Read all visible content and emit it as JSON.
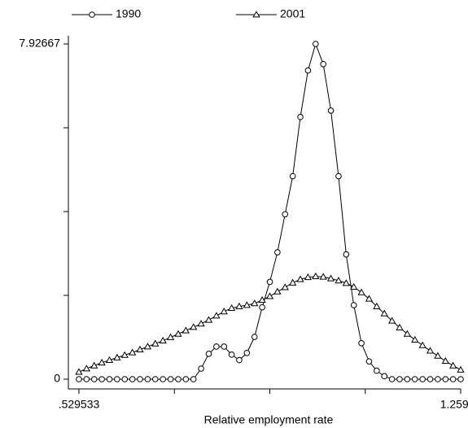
{
  "chart_data": {
    "type": "line",
    "xlabel": "Relative employment rate",
    "x": [
      0.5295,
      0.5441,
      0.5587,
      0.5733,
      0.5879,
      0.6025,
      0.6171,
      0.6317,
      0.6463,
      0.6609,
      0.6755,
      0.6901,
      0.7047,
      0.7193,
      0.7339,
      0.7485,
      0.7631,
      0.7777,
      0.7923,
      0.8069,
      0.8215,
      0.836,
      0.8506,
      0.8652,
      0.8798,
      0.8944,
      0.909,
      0.9236,
      0.9382,
      0.9528,
      0.9674,
      0.982,
      0.9966,
      1.0112,
      1.0258,
      1.0404,
      1.055,
      1.0696,
      1.0842,
      1.0988,
      1.1134,
      1.128,
      1.1426,
      1.1572,
      1.1718,
      1.1864,
      1.201,
      1.2156,
      1.2302,
      1.2448,
      1.2593
    ],
    "series": [
      {
        "name": "1990",
        "color": "#000000",
        "marker": "circle",
        "values": [
          0,
          0,
          0,
          0,
          0,
          0,
          0,
          0,
          0,
          0,
          0,
          0,
          0,
          0,
          0,
          0,
          0.25,
          0.6,
          0.77,
          0.77,
          0.58,
          0.45,
          0.62,
          1.0,
          1.7,
          2.3,
          3.0,
          3.9,
          4.8,
          6.2,
          7.3,
          7.92667,
          7.45,
          6.35,
          4.8,
          2.95,
          1.75,
          0.85,
          0.42,
          0.2,
          0.07,
          0,
          0,
          0,
          0,
          0,
          0,
          0,
          0,
          0,
          0
        ]
      },
      {
        "name": "2001",
        "color": "#000000",
        "marker": "triangle",
        "values": [
          0.17,
          0.25,
          0.32,
          0.39,
          0.45,
          0.51,
          0.57,
          0.63,
          0.7,
          0.77,
          0.84,
          0.91,
          0.99,
          1.07,
          1.15,
          1.23,
          1.31,
          1.4,
          1.5,
          1.6,
          1.68,
          1.72,
          1.75,
          1.79,
          1.87,
          1.96,
          2.07,
          2.17,
          2.28,
          2.36,
          2.41,
          2.43,
          2.42,
          2.38,
          2.33,
          2.27,
          2.18,
          2.05,
          1.9,
          1.72,
          1.55,
          1.38,
          1.22,
          1.07,
          0.93,
          0.8,
          0.67,
          0.55,
          0.43,
          0.32,
          0.22
        ]
      }
    ],
    "xlim": [
      0.529533,
      1.25929
    ],
    "xticks": [
      {
        "value": 0.529533,
        "label": ".529533"
      },
      1.25929
    ],
    "xticks_minor": [
      0.71197,
      0.89441,
      1.07685
    ],
    "ylim": [
      0,
      7.92667
    ],
    "yticks": [
      0,
      7.92667
    ],
    "yticks_minor": [
      1.98167,
      3.96333,
      5.945
    ],
    "legend": "top"
  }
}
